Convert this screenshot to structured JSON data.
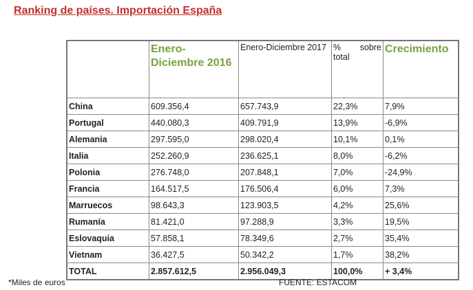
{
  "title": "Ranking de países. Importación España",
  "headers": {
    "col1": "Enero-Diciembre 2016",
    "col2": "Enero-Diciembre 2017",
    "col3_a": "%",
    "col3_b": "sobre",
    "col3_c": "total",
    "col4": "Crecimiento"
  },
  "rows": [
    {
      "country": "China",
      "y2016": "609.356,4",
      "y2017": "657.743,9",
      "share": "22,3%",
      "growth": "7,9%"
    },
    {
      "country": "Portugal",
      "y2016": "440.080,3",
      "y2017": "409.791,9",
      "share": "13,9%",
      "growth": "-6,9%"
    },
    {
      "country": "Alemania",
      "y2016": "297.595,0",
      "y2017": "298.020,4",
      "share": "10,1%",
      "growth": "0,1%"
    },
    {
      "country": "Italia",
      "y2016": "252.260,9",
      "y2017": "236.625,1",
      "share": "8,0%",
      "growth": "-6,2%"
    },
    {
      "country": "Polonia",
      "y2016": "276.748,0",
      "y2017": "207.848,1",
      "share": "7,0%",
      "growth": "-24,9%"
    },
    {
      "country": "Francia",
      "y2016": "164.517,5",
      "y2017": "176.506,4",
      "share": "6,0%",
      "growth": "7,3%"
    },
    {
      "country": "Marruecos",
      "y2016": "98.643,3",
      "y2017": "123.903,5",
      "share": "4,2%",
      "growth": "25,6%"
    },
    {
      "country": "Rumanía",
      "y2016": "81.421,0",
      "y2017": "97.288,9",
      "share": "3,3%",
      "growth": "19,5%"
    },
    {
      "country": "Eslovaquia",
      "y2016": "57.858,1",
      "y2017": "78.349,6",
      "share": "2,7%",
      "growth": "35,4%"
    },
    {
      "country": "Vietnam",
      "y2016": "36.427,5",
      "y2017": "50.342,2",
      "share": "1,7%",
      "growth": "38,2%"
    }
  ],
  "total": {
    "country": "TOTAL",
    "y2016": "2.857.612,5",
    "y2017": "2.956.049,3",
    "share": "100,0%",
    "growth": "+ 3,4%"
  },
  "footnote": "*Miles de euros",
  "source": "FUENTE: ESTACOM"
}
